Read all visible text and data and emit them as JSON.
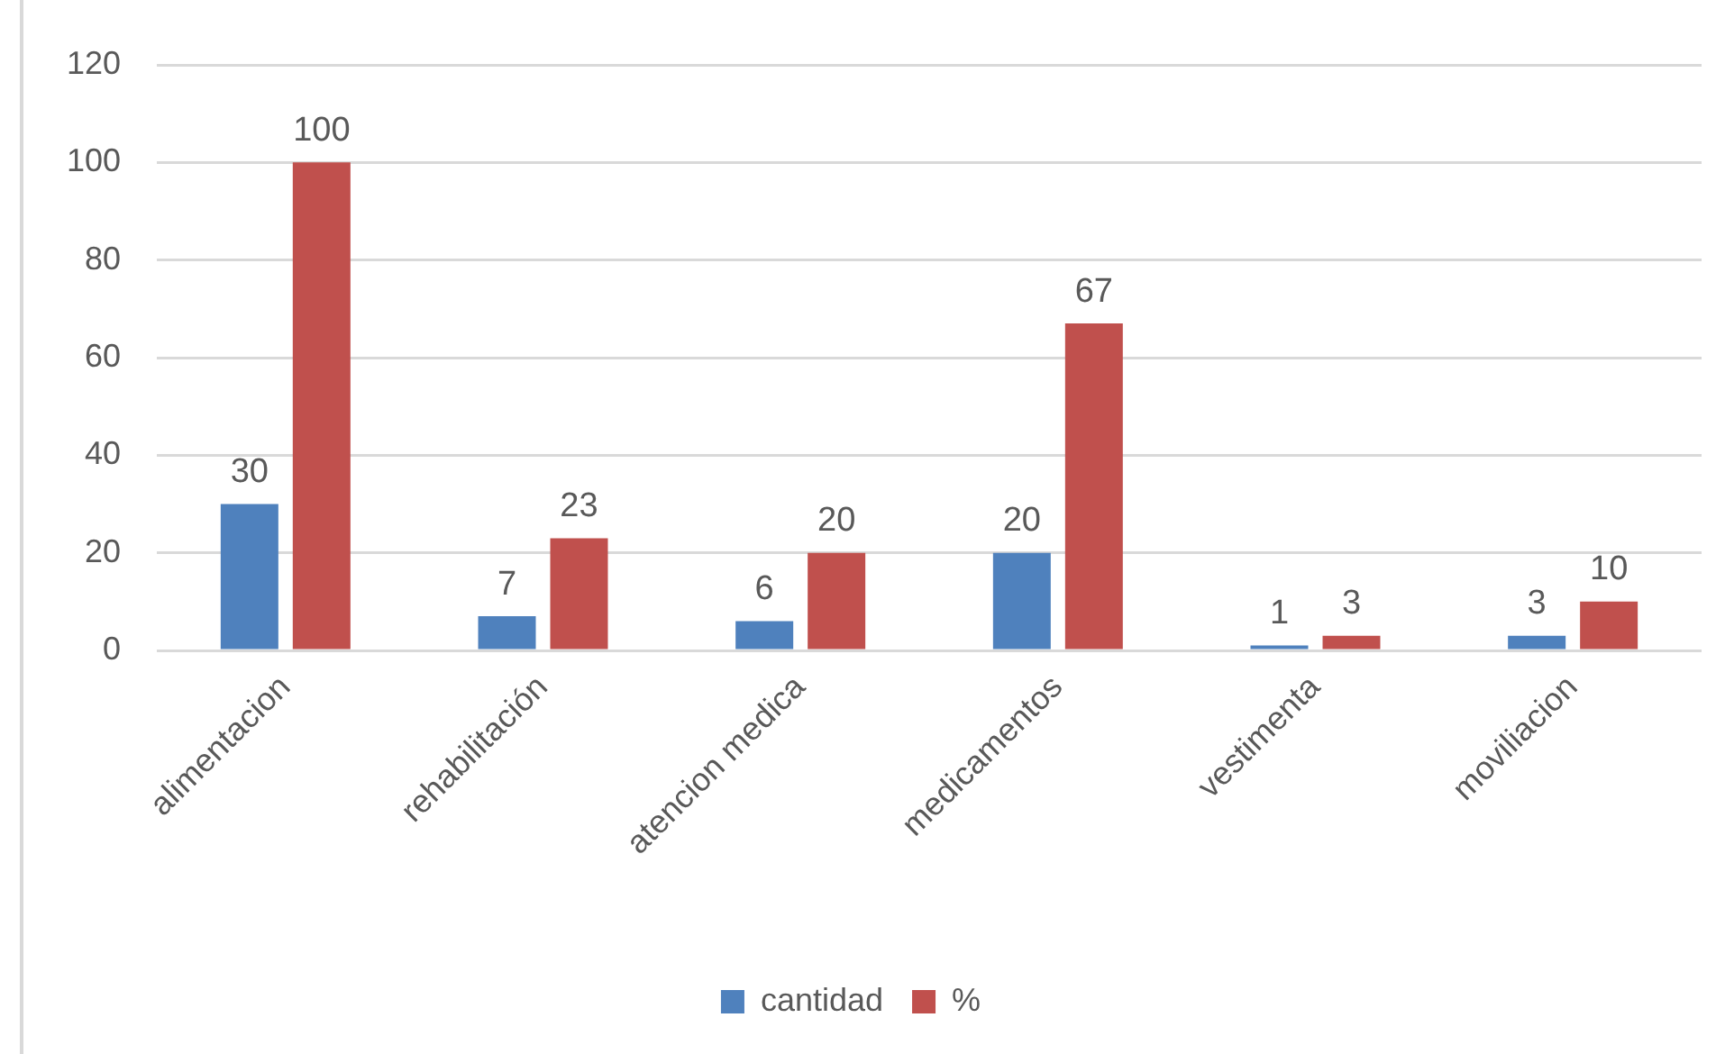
{
  "chart_data": {
    "type": "bar",
    "categories": [
      "alimentacion",
      "rehabilitación",
      "atencion medica",
      "medicamentos",
      "vestimenta",
      "moviliacion"
    ],
    "series": [
      {
        "name": "cantidad",
        "color": "#4f81bd",
        "values": [
          30,
          7,
          6,
          20,
          1,
          3
        ]
      },
      {
        "name": "%",
        "color": "#c0504d",
        "values": [
          100,
          23,
          20,
          67,
          3,
          10
        ]
      }
    ],
    "ylim": [
      0,
      120
    ],
    "yticks": [
      0,
      20,
      40,
      60,
      80,
      100,
      120
    ],
    "grid": "y",
    "legend": "bottom",
    "data_labels": true
  }
}
